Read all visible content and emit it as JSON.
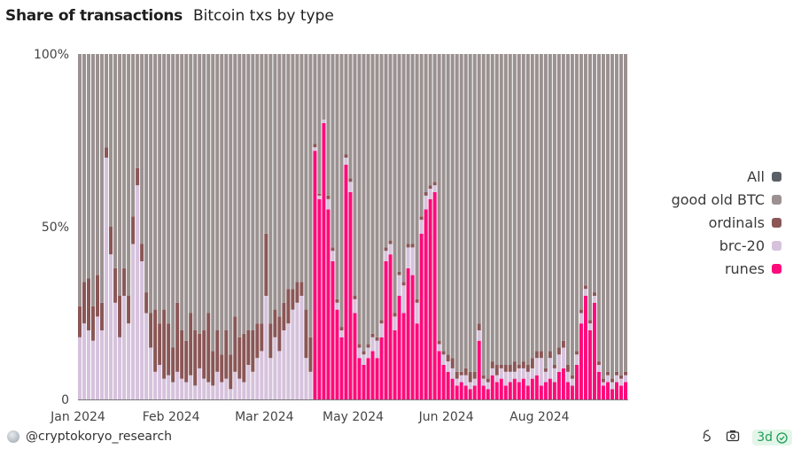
{
  "header": {
    "title": "Share of transactions",
    "subtitle": "Bitcoin txs by type"
  },
  "footer": {
    "author": "@cryptokoryo_research",
    "refresh_badge": "3d"
  },
  "chart_data": {
    "type": "bar",
    "stacked": true,
    "normalized_percent": true,
    "ylim": [
      0,
      100
    ],
    "y_tick_labels": [
      "0",
      "50%",
      "100%"
    ],
    "y_ticks": [
      0,
      50,
      100
    ],
    "x_ticks": [
      {
        "label": "Jan 2024",
        "index": 0
      },
      {
        "label": "Feb 2024",
        "index": 21
      },
      {
        "label": "Mar 2024",
        "index": 42
      },
      {
        "label": "May 2024",
        "index": 62
      },
      {
        "label": "Jun 2024",
        "index": 83
      },
      {
        "label": "Aug 2024",
        "index": 104
      }
    ],
    "legend_position": "right",
    "legend": [
      {
        "name": "All",
        "color": "#5b6067"
      },
      {
        "name": "good old BTC",
        "color": "#9b9191"
      },
      {
        "name": "ordinals",
        "color": "#8a5656"
      },
      {
        "name": "brc-20",
        "color": "#d6c2dc"
      },
      {
        "name": "runes",
        "color": "#ff0a7a"
      }
    ],
    "series": [
      {
        "name": "runes",
        "color": "#ff0a7a",
        "values": [
          0,
          0,
          0,
          0,
          0,
          0,
          0,
          0,
          0,
          0,
          0,
          0,
          0,
          0,
          0,
          0,
          0,
          0,
          0,
          0,
          0,
          0,
          0,
          0,
          0,
          0,
          0,
          0,
          0,
          0,
          0,
          0,
          0,
          0,
          0,
          0,
          0,
          0,
          0,
          0,
          0,
          0,
          0,
          0,
          0,
          0,
          0,
          0,
          0,
          0,
          0,
          0,
          0,
          72,
          58,
          80,
          55,
          40,
          26,
          18,
          68,
          60,
          25,
          12,
          10,
          12,
          14,
          12,
          18,
          40,
          42,
          20,
          30,
          25,
          38,
          36,
          22,
          48,
          55,
          58,
          60,
          14,
          10,
          8,
          6,
          4,
          5,
          4,
          3,
          4,
          17,
          4,
          3,
          7,
          5,
          6,
          4,
          5,
          6,
          5,
          6,
          4,
          6,
          7,
          4,
          5,
          6,
          5,
          8,
          9,
          5,
          4,
          10,
          22,
          30,
          20,
          28,
          8,
          4,
          5,
          3,
          5,
          4,
          5
        ]
      },
      {
        "name": "brc-20",
        "color": "#d6c2dc",
        "values": [
          18,
          22,
          20,
          17,
          24,
          20,
          70,
          42,
          28,
          18,
          30,
          22,
          45,
          62,
          40,
          25,
          15,
          8,
          10,
          6,
          7,
          5,
          8,
          6,
          5,
          7,
          4,
          9,
          6,
          5,
          4,
          8,
          5,
          6,
          3,
          8,
          6,
          5,
          10,
          8,
          12,
          14,
          30,
          12,
          18,
          14,
          20,
          22,
          26,
          28,
          30,
          12,
          8,
          1,
          1,
          1,
          3,
          3,
          2,
          2,
          2,
          3,
          4,
          3,
          3,
          3,
          4,
          5,
          4,
          3,
          3,
          4,
          6,
          8,
          6,
          8,
          6,
          4,
          4,
          3,
          2,
          2,
          3,
          3,
          3,
          2,
          2,
          3,
          2,
          2,
          3,
          2,
          2,
          2,
          2,
          3,
          4,
          3,
          2,
          4,
          3,
          4,
          3,
          5,
          8,
          3,
          6,
          4,
          5,
          6,
          3,
          2,
          3,
          3,
          2,
          2,
          2,
          2,
          1,
          2,
          2,
          2,
          2,
          2
        ]
      },
      {
        "name": "ordinals",
        "color": "#8a5656",
        "values": [
          9,
          12,
          15,
          10,
          12,
          8,
          3,
          8,
          10,
          12,
          8,
          8,
          8,
          5,
          5,
          6,
          10,
          18,
          12,
          20,
          15,
          10,
          20,
          14,
          12,
          18,
          16,
          10,
          14,
          20,
          10,
          12,
          8,
          14,
          10,
          16,
          12,
          14,
          10,
          12,
          10,
          8,
          18,
          10,
          8,
          10,
          8,
          10,
          6,
          6,
          4,
          14,
          10,
          1,
          0.5,
          0,
          1,
          1,
          1,
          1,
          1,
          1,
          1,
          1,
          1,
          1,
          1,
          1,
          1,
          1,
          1,
          1,
          1,
          1,
          1,
          1,
          1,
          1,
          1,
          1,
          1,
          1,
          1,
          2,
          3,
          2,
          1,
          2,
          3,
          2,
          2,
          1,
          1,
          2,
          3,
          1,
          2,
          2,
          3,
          1,
          2,
          2,
          3,
          2,
          2,
          1,
          2,
          1,
          2,
          2,
          2,
          1,
          1,
          1,
          1,
          1,
          1,
          1,
          1,
          1,
          1,
          1,
          1,
          1
        ]
      }
    ],
    "remainder_series": {
      "name": "good old BTC",
      "color": "#9b9191"
    }
  }
}
